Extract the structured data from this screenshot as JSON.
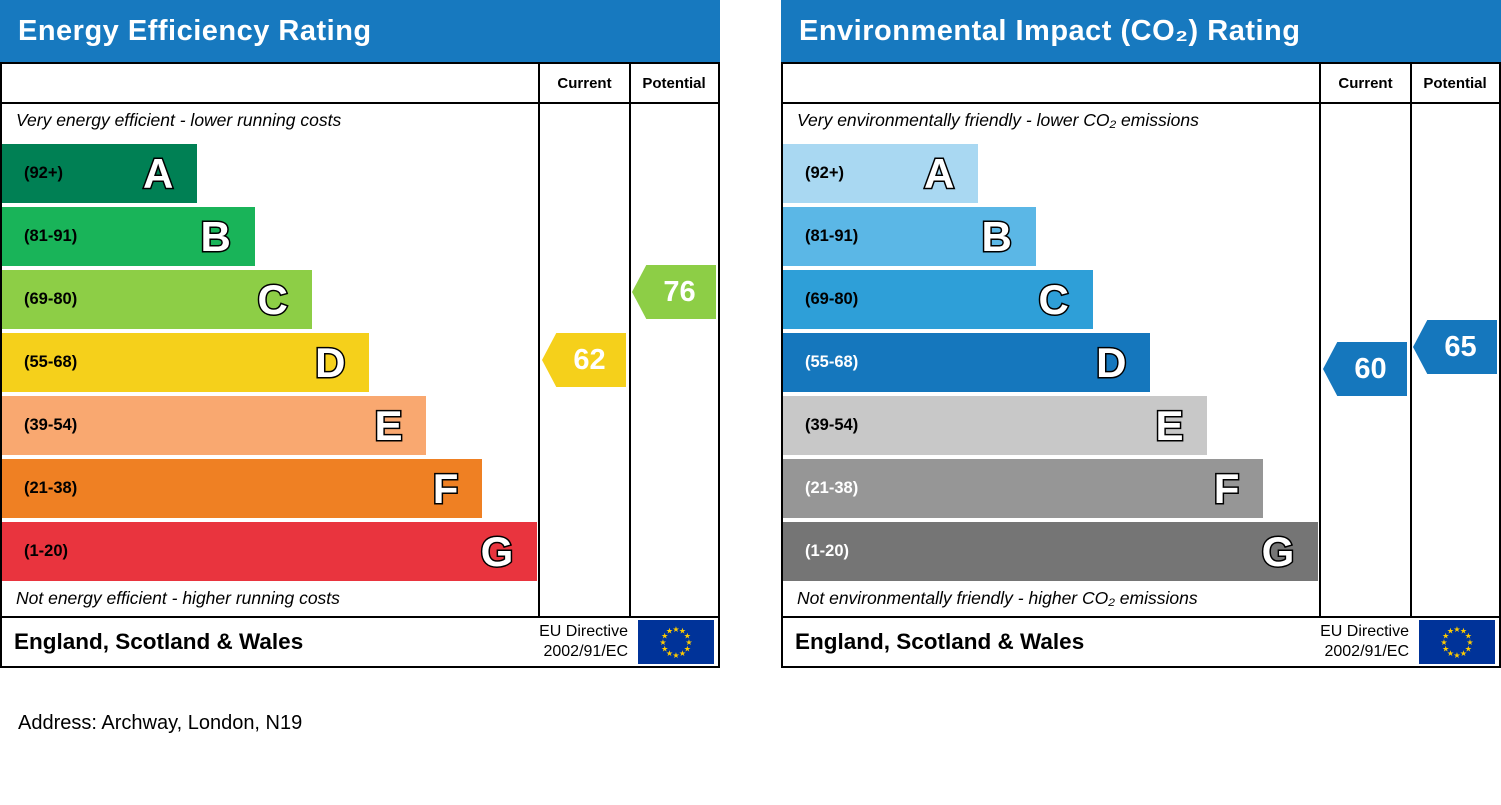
{
  "page": {
    "address_line": "Address: Archway, London, N19"
  },
  "colors": {
    "header_blue": "#1779bf",
    "eu_flag_blue": "#003399",
    "eu_star_yellow": "#ffcc00"
  },
  "chart_data": [
    {
      "type": "bar",
      "id": "energy-efficiency",
      "title": "Energy Efficiency Rating",
      "columns": {
        "current": "Current",
        "potential": "Potential"
      },
      "top_note": "Very energy efficient - lower running costs",
      "bottom_note": "Not energy efficient - higher running costs",
      "footer": {
        "region": "England, Scotland & Wales",
        "directive_line1": "EU Directive",
        "directive_line2": "2002/91/EC"
      },
      "bands": [
        {
          "letter": "A",
          "range": "(92+)",
          "min": 92,
          "max": 100,
          "color": "#008054",
          "width_pct": 36.3,
          "range_color": "#000000"
        },
        {
          "letter": "B",
          "range": "(81-91)",
          "min": 81,
          "max": 91,
          "color": "#19b459",
          "width_pct": 47.0,
          "range_color": "#000000"
        },
        {
          "letter": "C",
          "range": "(69-80)",
          "min": 69,
          "max": 80,
          "color": "#8dce46",
          "width_pct": 57.6,
          "range_color": "#000000"
        },
        {
          "letter": "D",
          "range": "(55-68)",
          "min": 55,
          "max": 68,
          "color": "#f5d01b",
          "width_pct": 68.3,
          "range_color": "#000000"
        },
        {
          "letter": "E",
          "range": "(39-54)",
          "min": 39,
          "max": 54,
          "color": "#f9a870",
          "width_pct": 78.9,
          "range_color": "#000000"
        },
        {
          "letter": "F",
          "range": "(21-38)",
          "min": 21,
          "max": 38,
          "color": "#ef8023",
          "width_pct": 89.3,
          "range_color": "#000000"
        },
        {
          "letter": "G",
          "range": "(1-20)",
          "min": 1,
          "max": 20,
          "color": "#e9343e",
          "width_pct": 99.5,
          "range_color": "#000000"
        }
      ],
      "current": {
        "value": 62,
        "band": "D",
        "color": "#f5d01b"
      },
      "potential": {
        "value": 76,
        "band": "C",
        "color": "#8dce46"
      }
    },
    {
      "type": "bar",
      "id": "environmental-impact",
      "title": "Environmental Impact (CO₂) Rating",
      "columns": {
        "current": "Current",
        "potential": "Potential"
      },
      "top_note": "Very environmentally friendly - lower CO₂ emissions",
      "bottom_note": "Not environmentally friendly - higher CO₂ emissions",
      "footer": {
        "region": "England, Scotland & Wales",
        "directive_line1": "EU Directive",
        "directive_line2": "2002/91/EC"
      },
      "bands": [
        {
          "letter": "A",
          "range": "(92+)",
          "min": 92,
          "max": 100,
          "color": "#a9d8f2",
          "width_pct": 36.3,
          "range_color": "#000000"
        },
        {
          "letter": "B",
          "range": "(81-91)",
          "min": 81,
          "max": 91,
          "color": "#5bb7e6",
          "width_pct": 47.0,
          "range_color": "#000000"
        },
        {
          "letter": "C",
          "range": "(69-80)",
          "min": 69,
          "max": 80,
          "color": "#2e9fd8",
          "width_pct": 57.6,
          "range_color": "#000000"
        },
        {
          "letter": "D",
          "range": "(55-68)",
          "min": 55,
          "max": 68,
          "color": "#1577bd",
          "width_pct": 68.3,
          "range_color": "#ffffff"
        },
        {
          "letter": "E",
          "range": "(39-54)",
          "min": 39,
          "max": 54,
          "color": "#c8c8c8",
          "width_pct": 78.9,
          "range_color": "#000000"
        },
        {
          "letter": "F",
          "range": "(21-38)",
          "min": 21,
          "max": 38,
          "color": "#969696",
          "width_pct": 89.3,
          "range_color": "#ffffff"
        },
        {
          "letter": "G",
          "range": "(1-20)",
          "min": 1,
          "max": 20,
          "color": "#757575",
          "width_pct": 99.5,
          "range_color": "#ffffff"
        }
      ],
      "current": {
        "value": 60,
        "band": "D",
        "color": "#1577bd"
      },
      "potential": {
        "value": 65,
        "band": "D",
        "color": "#1577bd"
      }
    }
  ]
}
